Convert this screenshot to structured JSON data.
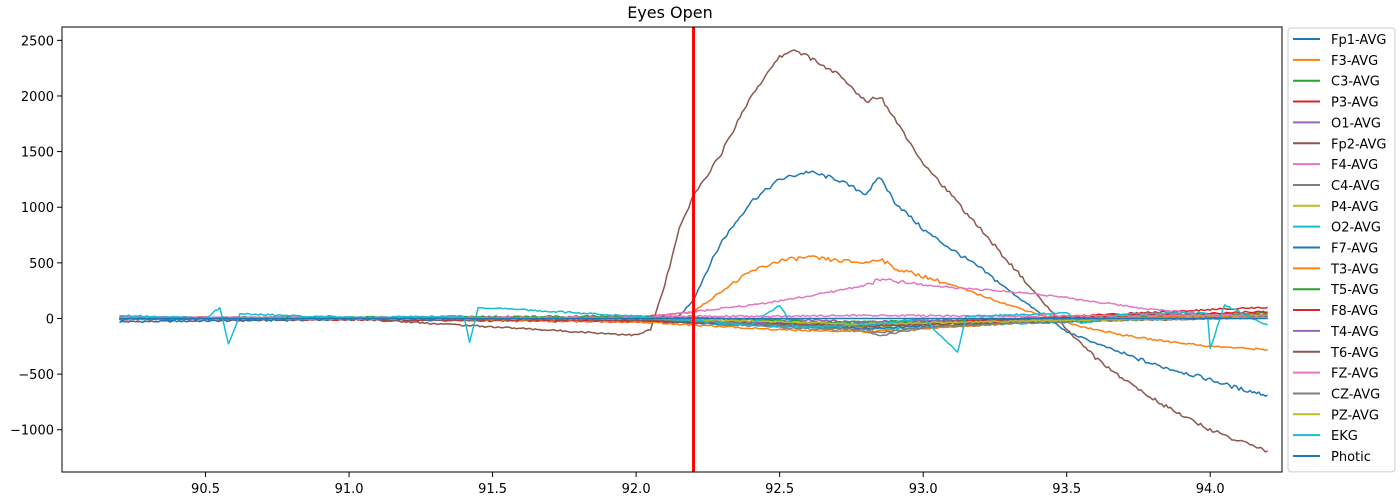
{
  "chart_data": {
    "type": "line",
    "title": "Eyes Open",
    "xlabel": "",
    "ylabel": "",
    "xlim": [
      90.0,
      94.25
    ],
    "ylim": [
      -1380,
      2620
    ],
    "x_ticks": [
      90.5,
      91.0,
      91.5,
      92.0,
      92.5,
      93.0,
      93.5,
      94.0
    ],
    "x_tick_labels": [
      "90.5",
      "91.0",
      "91.5",
      "92.0",
      "92.5",
      "93.0",
      "93.5",
      "94.0"
    ],
    "y_ticks": [
      -1000,
      -500,
      0,
      500,
      1000,
      1500,
      2000,
      2500
    ],
    "y_tick_labels": [
      "−1000",
      "−500",
      "0",
      "500",
      "1000",
      "1500",
      "2000",
      "2500"
    ],
    "grid": false,
    "legend_placement": "outside-right",
    "event_marker": {
      "x": 92.2,
      "color": "#ff0000"
    },
    "series": [
      {
        "name": "Fp1-AVG",
        "color": "#1f77b4",
        "points": [
          [
            90.2,
            -30
          ],
          [
            91.0,
            -10
          ],
          [
            92.0,
            -20
          ],
          [
            92.15,
            20
          ],
          [
            92.2,
            170
          ],
          [
            92.25,
            450
          ],
          [
            92.3,
            700
          ],
          [
            92.4,
            1050
          ],
          [
            92.5,
            1250
          ],
          [
            92.6,
            1320
          ],
          [
            92.7,
            1250
          ],
          [
            92.8,
            1120
          ],
          [
            92.85,
            1270
          ],
          [
            92.9,
            1050
          ],
          [
            93.0,
            800
          ],
          [
            93.1,
            620
          ],
          [
            93.2,
            450
          ],
          [
            93.3,
            250
          ],
          [
            93.4,
            60
          ],
          [
            93.5,
            -120
          ],
          [
            93.6,
            -220
          ],
          [
            93.7,
            -320
          ],
          [
            93.8,
            -410
          ],
          [
            93.9,
            -480
          ],
          [
            94.0,
            -550
          ],
          [
            94.1,
            -630
          ],
          [
            94.2,
            -690
          ]
        ]
      },
      {
        "name": "F3-AVG",
        "color": "#ff7f0e",
        "points": [
          [
            90.2,
            0
          ],
          [
            92.0,
            5
          ],
          [
            92.2,
            60
          ],
          [
            92.3,
            250
          ],
          [
            92.4,
            420
          ],
          [
            92.5,
            520
          ],
          [
            92.6,
            550
          ],
          [
            92.7,
            520
          ],
          [
            92.8,
            500
          ],
          [
            92.85,
            540
          ],
          [
            92.9,
            450
          ],
          [
            93.0,
            380
          ],
          [
            93.1,
            300
          ],
          [
            93.2,
            210
          ],
          [
            93.3,
            120
          ],
          [
            93.4,
            40
          ],
          [
            93.5,
            -40
          ],
          [
            93.6,
            -100
          ],
          [
            93.7,
            -150
          ],
          [
            93.8,
            -190
          ],
          [
            93.9,
            -220
          ],
          [
            94.0,
            -250
          ],
          [
            94.2,
            -280
          ]
        ]
      },
      {
        "name": "C3-AVG",
        "color": "#2ca02c",
        "points": [
          [
            90.2,
            5
          ],
          [
            91.0,
            0
          ],
          [
            92.0,
            10
          ],
          [
            92.2,
            -20
          ],
          [
            92.5,
            -40
          ],
          [
            92.8,
            -30
          ],
          [
            93.2,
            -10
          ],
          [
            93.6,
            10
          ],
          [
            94.2,
            40
          ]
        ]
      },
      {
        "name": "P3-AVG",
        "color": "#d62728",
        "points": [
          [
            90.2,
            -5
          ],
          [
            91.0,
            -10
          ],
          [
            92.0,
            -30
          ],
          [
            92.2,
            -30
          ],
          [
            92.5,
            -50
          ],
          [
            92.8,
            -60
          ],
          [
            93.2,
            -20
          ],
          [
            93.6,
            30
          ],
          [
            94.0,
            80
          ],
          [
            94.2,
            100
          ]
        ]
      },
      {
        "name": "O1-AVG",
        "color": "#9467bd",
        "points": [
          [
            90.2,
            10
          ],
          [
            91.0,
            5
          ],
          [
            92.0,
            10
          ],
          [
            92.2,
            0
          ],
          [
            92.5,
            -10
          ],
          [
            92.8,
            -30
          ],
          [
            93.2,
            -10
          ],
          [
            94.2,
            20
          ]
        ]
      },
      {
        "name": "Fp2-AVG",
        "color": "#8c564b",
        "points": [
          [
            90.2,
            0
          ],
          [
            91.0,
            0
          ],
          [
            92.0,
            -150
          ],
          [
            92.05,
            -100
          ],
          [
            92.1,
            300
          ],
          [
            92.15,
            800
          ],
          [
            92.2,
            1100
          ],
          [
            92.3,
            1500
          ],
          [
            92.4,
            2000
          ],
          [
            92.5,
            2350
          ],
          [
            92.55,
            2420
          ],
          [
            92.6,
            2350
          ],
          [
            92.7,
            2200
          ],
          [
            92.8,
            1950
          ],
          [
            92.85,
            2000
          ],
          [
            92.9,
            1800
          ],
          [
            93.0,
            1400
          ],
          [
            93.1,
            1100
          ],
          [
            93.2,
            800
          ],
          [
            93.3,
            500
          ],
          [
            93.4,
            200
          ],
          [
            93.5,
            -100
          ],
          [
            93.6,
            -350
          ],
          [
            93.7,
            -550
          ],
          [
            93.8,
            -720
          ],
          [
            93.9,
            -870
          ],
          [
            94.0,
            -1000
          ],
          [
            94.1,
            -1100
          ],
          [
            94.2,
            -1190
          ]
        ]
      },
      {
        "name": "F4-AVG",
        "color": "#e377c2",
        "points": [
          [
            90.2,
            10
          ],
          [
            92.0,
            10
          ],
          [
            92.2,
            60
          ],
          [
            92.4,
            120
          ],
          [
            92.6,
            200
          ],
          [
            92.8,
            300
          ],
          [
            92.85,
            350
          ],
          [
            93.0,
            300
          ],
          [
            93.2,
            260
          ],
          [
            93.4,
            220
          ],
          [
            93.6,
            150
          ],
          [
            93.8,
            80
          ],
          [
            94.0,
            40
          ],
          [
            94.2,
            20
          ]
        ]
      },
      {
        "name": "C4-AVG",
        "color": "#7f7f7f",
        "points": [
          [
            90.2,
            0
          ],
          [
            92.0,
            -10
          ],
          [
            92.2,
            -40
          ],
          [
            92.5,
            -80
          ],
          [
            92.8,
            -120
          ],
          [
            92.85,
            -150
          ],
          [
            93.0,
            -90
          ],
          [
            93.3,
            -40
          ],
          [
            93.6,
            0
          ],
          [
            94.2,
            30
          ]
        ]
      },
      {
        "name": "P4-AVG",
        "color": "#bcbd22",
        "points": [
          [
            90.2,
            5
          ],
          [
            92.0,
            0
          ],
          [
            92.2,
            -20
          ],
          [
            92.5,
            -50
          ],
          [
            92.8,
            -80
          ],
          [
            93.2,
            -40
          ],
          [
            93.6,
            0
          ],
          [
            94.2,
            20
          ]
        ]
      },
      {
        "name": "O2-AVG",
        "color": "#17becf",
        "points": [
          [
            90.2,
            0
          ],
          [
            91.0,
            10
          ],
          [
            92.0,
            -10
          ],
          [
            92.2,
            -40
          ],
          [
            92.5,
            -70
          ],
          [
            92.8,
            -100
          ],
          [
            93.2,
            -60
          ],
          [
            93.6,
            -20
          ],
          [
            94.2,
            10
          ]
        ]
      },
      {
        "name": "F7-AVG",
        "color": "#1f77b4",
        "points": [
          [
            90.2,
            -10
          ],
          [
            91.0,
            -5
          ],
          [
            92.0,
            -20
          ],
          [
            92.2,
            -40
          ],
          [
            92.5,
            -60
          ],
          [
            92.8,
            -90
          ],
          [
            93.2,
            -50
          ],
          [
            93.6,
            -10
          ],
          [
            94.2,
            20
          ]
        ]
      },
      {
        "name": "T3-AVG",
        "color": "#ff7f0e",
        "points": [
          [
            90.2,
            0
          ],
          [
            91.0,
            5
          ],
          [
            92.0,
            -30
          ],
          [
            92.2,
            -60
          ],
          [
            92.5,
            -100
          ],
          [
            92.8,
            -120
          ],
          [
            93.2,
            -60
          ],
          [
            93.6,
            0
          ],
          [
            94.2,
            30
          ]
        ]
      },
      {
        "name": "T5-AVG",
        "color": "#2ca02c",
        "points": [
          [
            90.2,
            0
          ],
          [
            92.0,
            20
          ],
          [
            92.2,
            10
          ],
          [
            92.5,
            -20
          ],
          [
            92.8,
            -50
          ],
          [
            93.2,
            -20
          ],
          [
            93.6,
            20
          ],
          [
            94.2,
            50
          ]
        ]
      },
      {
        "name": "F8-AVG",
        "color": "#d62728",
        "points": [
          [
            90.2,
            10
          ],
          [
            91.0,
            0
          ],
          [
            92.0,
            -20
          ],
          [
            92.2,
            -30
          ],
          [
            92.5,
            -40
          ],
          [
            92.8,
            -60
          ],
          [
            93.2,
            -20
          ],
          [
            93.6,
            20
          ],
          [
            94.2,
            60
          ]
        ]
      },
      {
        "name": "T4-AVG",
        "color": "#9467bd",
        "points": [
          [
            90.2,
            5
          ],
          [
            92.0,
            0
          ],
          [
            92.2,
            -20
          ],
          [
            92.5,
            -40
          ],
          [
            92.8,
            -60
          ],
          [
            93.2,
            -30
          ],
          [
            94.2,
            10
          ]
        ]
      },
      {
        "name": "T6-AVG",
        "color": "#8c564b",
        "points": [
          [
            90.2,
            0
          ],
          [
            92.0,
            -10
          ],
          [
            92.2,
            -30
          ],
          [
            92.5,
            -50
          ],
          [
            92.8,
            -70
          ],
          [
            93.2,
            -40
          ],
          [
            94.2,
            10
          ]
        ]
      },
      {
        "name": "FZ-AVG",
        "color": "#e377c2",
        "points": [
          [
            90.2,
            5
          ],
          [
            92.0,
            10
          ],
          [
            92.2,
            20
          ],
          [
            92.5,
            20
          ],
          [
            92.8,
            30
          ],
          [
            93.2,
            20
          ],
          [
            94.2,
            30
          ]
        ]
      },
      {
        "name": "CZ-AVG",
        "color": "#7f7f7f",
        "points": [
          [
            90.2,
            0
          ],
          [
            92.0,
            0
          ],
          [
            92.2,
            -20
          ],
          [
            92.5,
            -60
          ],
          [
            92.8,
            -100
          ],
          [
            92.85,
            -130
          ],
          [
            93.0,
            -80
          ],
          [
            93.4,
            -30
          ],
          [
            94.2,
            10
          ]
        ]
      },
      {
        "name": "PZ-AVG",
        "color": "#bcbd22",
        "points": [
          [
            90.2,
            0
          ],
          [
            92.0,
            0
          ],
          [
            92.2,
            -10
          ],
          [
            92.5,
            -30
          ],
          [
            92.8,
            -50
          ],
          [
            93.2,
            -30
          ],
          [
            94.2,
            10
          ]
        ]
      },
      {
        "name": "EKG",
        "color": "#17becf",
        "points": [
          [
            90.2,
            30
          ],
          [
            90.5,
            0
          ],
          [
            90.55,
            100
          ],
          [
            90.58,
            -230
          ],
          [
            90.62,
            40
          ],
          [
            91.0,
            10
          ],
          [
            91.4,
            20
          ],
          [
            91.42,
            -210
          ],
          [
            91.45,
            100
          ],
          [
            92.0,
            20
          ],
          [
            92.2,
            -20
          ],
          [
            92.4,
            -60
          ],
          [
            92.5,
            120
          ],
          [
            92.55,
            -80
          ],
          [
            92.8,
            -60
          ],
          [
            93.0,
            0
          ],
          [
            93.12,
            -300
          ],
          [
            93.15,
            20
          ],
          [
            93.5,
            50
          ],
          [
            93.55,
            -50
          ],
          [
            93.7,
            40
          ],
          [
            93.99,
            50
          ],
          [
            94.0,
            -270
          ],
          [
            94.05,
            120
          ],
          [
            94.2,
            -60
          ]
        ]
      },
      {
        "name": "Photic",
        "color": "#1f77b4",
        "points": [
          [
            90.2,
            0
          ],
          [
            94.2,
            0
          ]
        ]
      }
    ]
  }
}
